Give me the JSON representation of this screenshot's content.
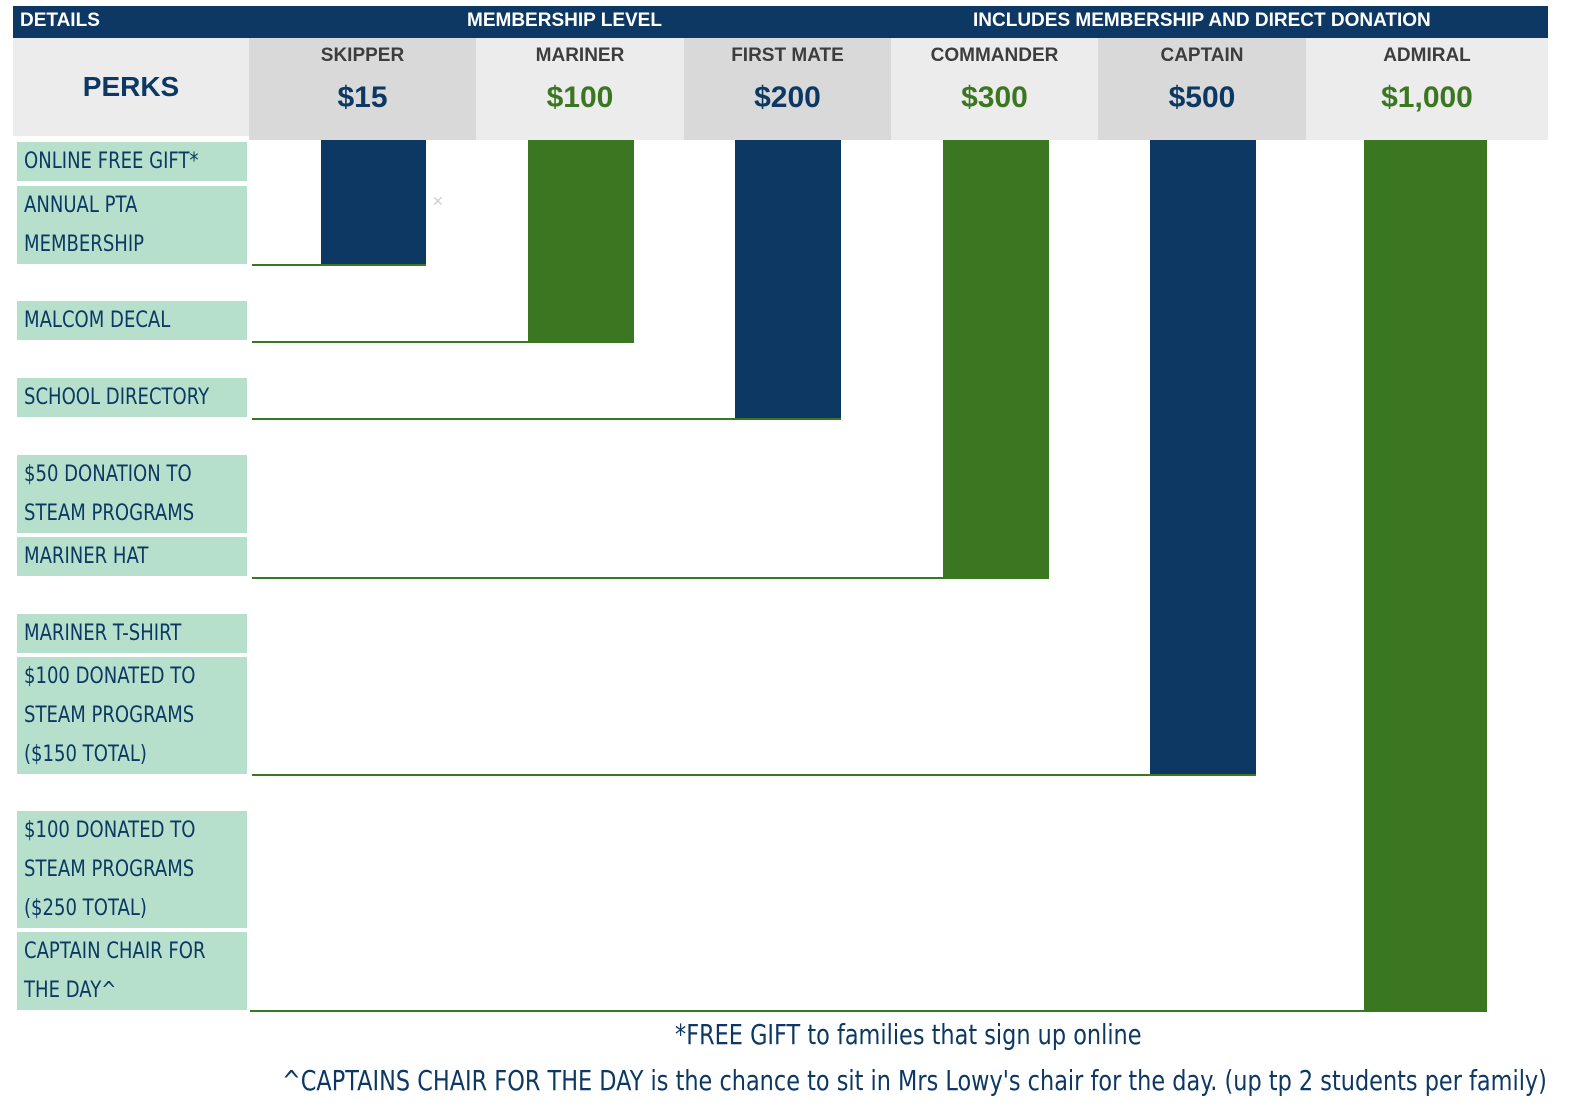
{
  "header": {
    "details_label": "DETAILS",
    "membership_label": "MEMBERSHIP LEVEL",
    "includes_label": "INCLUDES MEMBERSHIP AND DIRECT DONATION"
  },
  "perks_title": "PERKS",
  "colors": {
    "navy": "#0c3863",
    "green": "#3b7720",
    "perk_bg": "#b7e0cc",
    "header_grey_dark": "#d9d9d9",
    "header_grey_light": "#ececec"
  },
  "levels": [
    {
      "name": "SKIPPER",
      "price": "$15",
      "color": "#0c3863"
    },
    {
      "name": "MARINER",
      "price": "$100",
      "color": "#3b7720"
    },
    {
      "name": "FIRST MATE",
      "price": "$200",
      "color": "#0c3863"
    },
    {
      "name": "COMMANDER",
      "price": "$300",
      "color": "#3b7720"
    },
    {
      "name": "CAPTAIN",
      "price": "$500",
      "color": "#0c3863"
    },
    {
      "name": "ADMIRAL",
      "price": "$1,000",
      "color": "#3b7720"
    }
  ],
  "perks": [
    {
      "lines": [
        "ONLINE FREE GIFT*"
      ]
    },
    {
      "lines": [
        "ANNUAL PTA",
        "MEMBERSHIP"
      ]
    },
    {
      "lines": [
        "MALCOM DECAL"
      ]
    },
    {
      "lines": [
        "SCHOOL DIRECTORY"
      ]
    },
    {
      "lines": [
        "$50 DONATION TO",
        "STEAM PROGRAMS"
      ]
    },
    {
      "lines": [
        "MARINER HAT"
      ]
    },
    {
      "lines": [
        "MARINER T-SHIRT"
      ]
    },
    {
      "lines": [
        "$100 DONATED TO",
        "STEAM PROGRAMS",
        "($150 TOTAL)"
      ]
    },
    {
      "lines": [
        "$100 DONATED TO",
        "STEAM PROGRAMS",
        "($250 TOTAL)"
      ]
    },
    {
      "lines": [
        "CAPTAIN CHAIR FOR",
        "THE DAY^"
      ]
    }
  ],
  "level_includes_through_perk": [
    {
      "level": "SKIPPER",
      "last_perk": "ANNUAL PTA MEMBERSHIP"
    },
    {
      "level": "MARINER",
      "last_perk": "MALCOM DECAL"
    },
    {
      "level": "FIRST MATE",
      "last_perk": "SCHOOL DIRECTORY"
    },
    {
      "level": "COMMANDER",
      "last_perk": "MARINER HAT"
    },
    {
      "level": "CAPTAIN",
      "last_perk": "$100 DONATED TO STEAM PROGRAMS ($150 TOTAL)"
    },
    {
      "level": "ADMIRAL",
      "last_perk": "CAPTAIN CHAIR FOR THE DAY^"
    }
  ],
  "footnotes": {
    "gift": "*FREE GIFT to families that sign up online",
    "chair": "^CAPTAINS CHAIR FOR THE DAY is the chance to sit in Mrs Lowy's chair for the day. (up tp 2 students per family)"
  }
}
